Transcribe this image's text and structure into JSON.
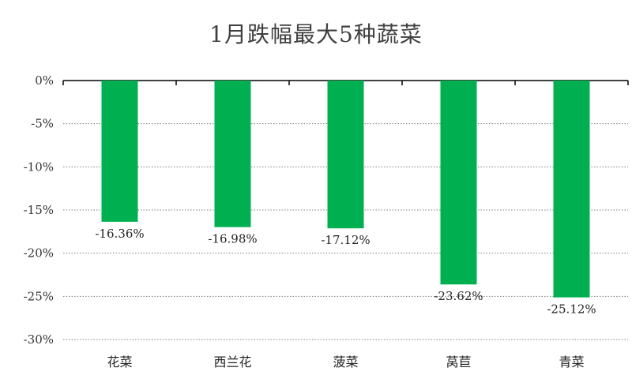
{
  "chart_data": {
    "type": "bar",
    "title": "1月跌幅最大5种蔬菜",
    "categories": [
      "花菜",
      "西兰花",
      "菠菜",
      "莴苣",
      "青菜"
    ],
    "values": [
      -16.36,
      -16.98,
      -17.12,
      -23.62,
      -25.12
    ],
    "data_labels": [
      "-16.36%",
      "-16.98%",
      "-17.12%",
      "-23.62%",
      "-25.12%"
    ],
    "ylim": [
      -30,
      0
    ],
    "yticks": [
      0,
      -5,
      -10,
      -15,
      -20,
      -25,
      -30
    ],
    "ytick_labels": [
      "0%",
      "-5%",
      "-10%",
      "-15%",
      "-20%",
      "-25%",
      "-30%"
    ],
    "xlabel": "",
    "ylabel": "",
    "grid": "horizontal-dotted",
    "legend": "none",
    "bar_color": "#00b050"
  }
}
